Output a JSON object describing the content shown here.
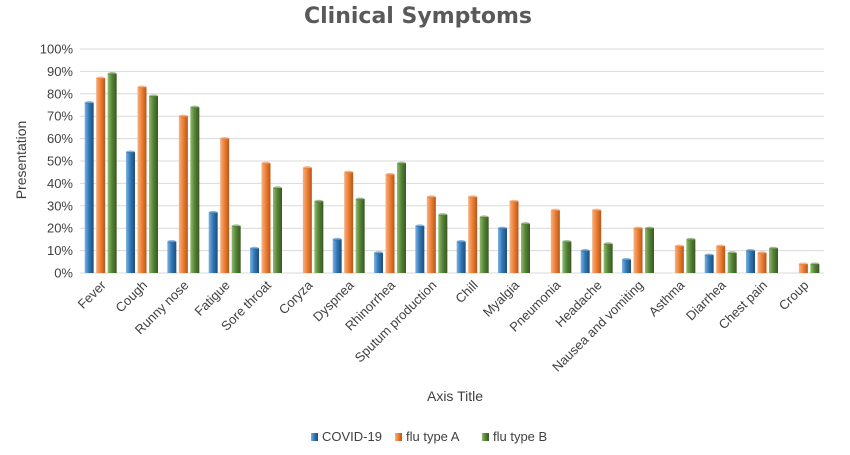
{
  "chart_data": {
    "type": "bar",
    "title": "Clinical Symptoms",
    "xlabel": "Axis Title",
    "ylabel": "Presentation",
    "ylim": [
      0,
      100
    ],
    "yticks": [
      "0%",
      "10%",
      "20%",
      "30%",
      "40%",
      "50%",
      "60%",
      "70%",
      "80%",
      "90%",
      "100%"
    ],
    "grid": true,
    "legend_position": "bottom",
    "categories": [
      "Fever",
      "Cough",
      "Runny nose",
      "Fatigue",
      "Sore throat",
      "Coryza",
      "Dyspnea",
      "Rhinorrhea",
      "Sputum production",
      "Chill",
      "Myalgia",
      "Pneumonia",
      "Headache",
      "Nausea and vomiting",
      "Asthma",
      "Diarrhea",
      "Chest pain",
      "Croup"
    ],
    "series": [
      {
        "name": "COVID-19",
        "color": "#2e75b6",
        "values": [
          76,
          54,
          14,
          27,
          11,
          null,
          15,
          9,
          21,
          14,
          20,
          null,
          10,
          6,
          null,
          8,
          10,
          null
        ]
      },
      {
        "name": "flu type A",
        "color": "#ed7d31",
        "values": [
          87,
          83,
          70,
          60,
          49,
          47,
          45,
          44,
          34,
          34,
          32,
          28,
          28,
          20,
          12,
          12,
          9,
          4
        ]
      },
      {
        "name": "flu type B",
        "color": "#548235",
        "values": [
          89,
          79,
          74,
          21,
          38,
          32,
          33,
          49,
          26,
          25,
          22,
          14,
          13,
          20,
          15,
          9,
          11,
          4
        ]
      }
    ]
  }
}
